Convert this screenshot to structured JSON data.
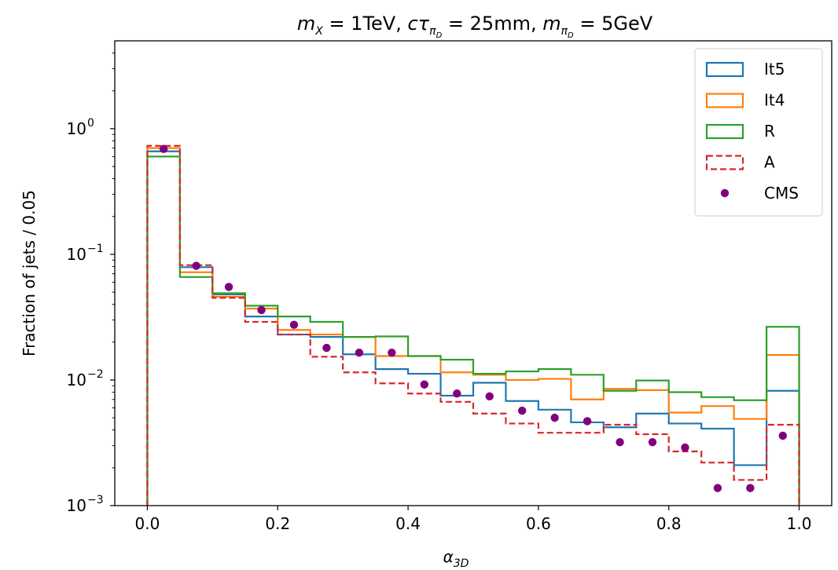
{
  "chart_data": {
    "type": "step-histogram",
    "title": {
      "m_symbol": "m",
      "m_sub": "X",
      "m_value": " = 1TeV, ",
      "ctau_symbol": "cτ",
      "ctau_sub": "π",
      "ctau_subsub": "D",
      "ctau_value": " = 25mm, ",
      "mpi_symbol": "m",
      "mpi_sub": "π",
      "mpi_subsub": "D",
      "mpi_value": " = 5GeV"
    },
    "xlabel": {
      "main": "α",
      "sub": "3D"
    },
    "ylabel": "Fraction of jets / 0.05",
    "xlim": [
      -0.05,
      1.05
    ],
    "ylim": [
      0.001,
      5.0
    ],
    "yscale": "log",
    "x_ticks": [
      {
        "value": 0.0,
        "label": "0.0"
      },
      {
        "value": 0.2,
        "label": "0.2"
      },
      {
        "value": 0.4,
        "label": "0.4"
      },
      {
        "value": 0.6,
        "label": "0.6"
      },
      {
        "value": 0.8,
        "label": "0.8"
      },
      {
        "value": 1.0,
        "label": "1.0"
      }
    ],
    "y_ticks": [
      {
        "value": 1.0,
        "base": "10",
        "exp": "0"
      },
      {
        "value": 0.1,
        "base": "10",
        "exp": "−1"
      },
      {
        "value": 0.01,
        "base": "10",
        "exp": "−2"
      },
      {
        "value": 0.001,
        "base": "10",
        "exp": "−3"
      }
    ],
    "bin_edges": [
      0.0,
      0.05,
      0.1,
      0.15,
      0.2,
      0.25,
      0.3,
      0.35,
      0.4,
      0.45,
      0.5,
      0.55,
      0.6,
      0.65,
      0.7,
      0.75,
      0.8,
      0.85,
      0.9,
      0.95,
      1.0
    ],
    "legend_position": "top-right",
    "series": [
      {
        "name": "It5",
        "style": "step",
        "color": "#1f77b4",
        "values": [
          0.66,
          0.079,
          0.048,
          0.032,
          0.023,
          0.022,
          0.016,
          0.0122,
          0.0112,
          0.0075,
          0.0095,
          0.0068,
          0.0058,
          0.0046,
          0.0042,
          0.0054,
          0.0045,
          0.0041,
          0.0021,
          0.0082
        ]
      },
      {
        "name": "It4",
        "style": "step",
        "color": "#ff7f0e",
        "values": [
          0.7,
          0.072,
          0.046,
          0.037,
          0.025,
          0.023,
          0.022,
          0.0155,
          0.0155,
          0.0115,
          0.011,
          0.01,
          0.0102,
          0.007,
          0.0085,
          0.0083,
          0.0055,
          0.0062,
          0.0049,
          0.0158
        ]
      },
      {
        "name": "R",
        "style": "step",
        "color": "#2ca02c",
        "values": [
          0.6,
          0.066,
          0.049,
          0.039,
          0.032,
          0.029,
          0.022,
          0.0222,
          0.0155,
          0.0145,
          0.0112,
          0.0117,
          0.0122,
          0.011,
          0.0082,
          0.0099,
          0.008,
          0.0073,
          0.0069,
          0.0265
        ]
      },
      {
        "name": "A",
        "style": "dashed-step",
        "color": "#d62728",
        "values": [
          0.73,
          0.082,
          0.045,
          0.029,
          0.023,
          0.0153,
          0.0115,
          0.0094,
          0.0078,
          0.0067,
          0.0054,
          0.0045,
          0.0038,
          0.0038,
          0.0044,
          0.0037,
          0.0027,
          0.0022,
          0.0016,
          0.0044
        ]
      },
      {
        "name": "CMS",
        "style": "points",
        "color": "#800080",
        "x": [
          0.025,
          0.075,
          0.125,
          0.175,
          0.225,
          0.275,
          0.325,
          0.375,
          0.425,
          0.475,
          0.525,
          0.575,
          0.625,
          0.675,
          0.725,
          0.775,
          0.825,
          0.875,
          0.925,
          0.975
        ],
        "values": [
          0.69,
          0.081,
          0.055,
          0.036,
          0.0275,
          0.018,
          0.0165,
          0.0165,
          0.0092,
          0.0078,
          0.0074,
          0.0057,
          0.005,
          0.0047,
          0.0032,
          0.0032,
          0.0029,
          0.00138,
          0.00138,
          0.0036
        ]
      }
    ]
  }
}
